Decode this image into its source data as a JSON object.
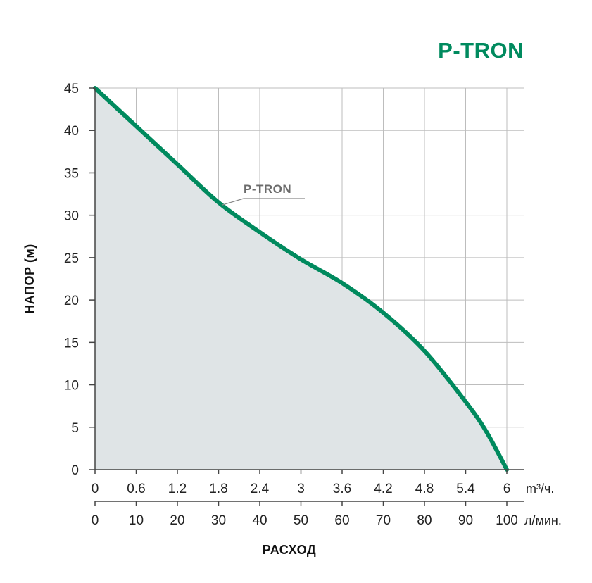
{
  "chart_data": {
    "type": "area",
    "title": "P-TRON",
    "ylabel": "НАПОР (м)",
    "xlabel": "РАСХОД",
    "ylim": [
      0,
      45
    ],
    "yticks": [
      "0",
      "5",
      "10",
      "15",
      "20",
      "25",
      "30",
      "35",
      "40",
      "45"
    ],
    "x_primary": {
      "unit": "m³/ч.",
      "range": [
        0,
        6
      ],
      "ticks": [
        "0",
        "0.6",
        "1.2",
        "1.8",
        "2.4",
        "3",
        "3.6",
        "4.2",
        "4.8",
        "5.4",
        "6"
      ]
    },
    "x_secondary": {
      "unit": "л/мин.",
      "range": [
        0,
        100
      ],
      "ticks": [
        "0",
        "10",
        "20",
        "30",
        "40",
        "50",
        "60",
        "70",
        "80",
        "90",
        "100"
      ]
    },
    "series": [
      {
        "name": "P-TRON",
        "x": [
          0,
          0.6,
          1.2,
          1.8,
          2.4,
          3.0,
          3.6,
          4.2,
          4.8,
          5.4,
          5.7,
          6.0
        ],
        "y": [
          45,
          40.5,
          36,
          31.5,
          28,
          24.8,
          22,
          18.5,
          14,
          8,
          4.5,
          0
        ]
      }
    ],
    "grid": true,
    "colors": {
      "curve": "#008a5e",
      "fill": "#dfe4e6",
      "grid": "#bdbdbd",
      "axis": "#444444",
      "brand": "#008a5e"
    }
  }
}
